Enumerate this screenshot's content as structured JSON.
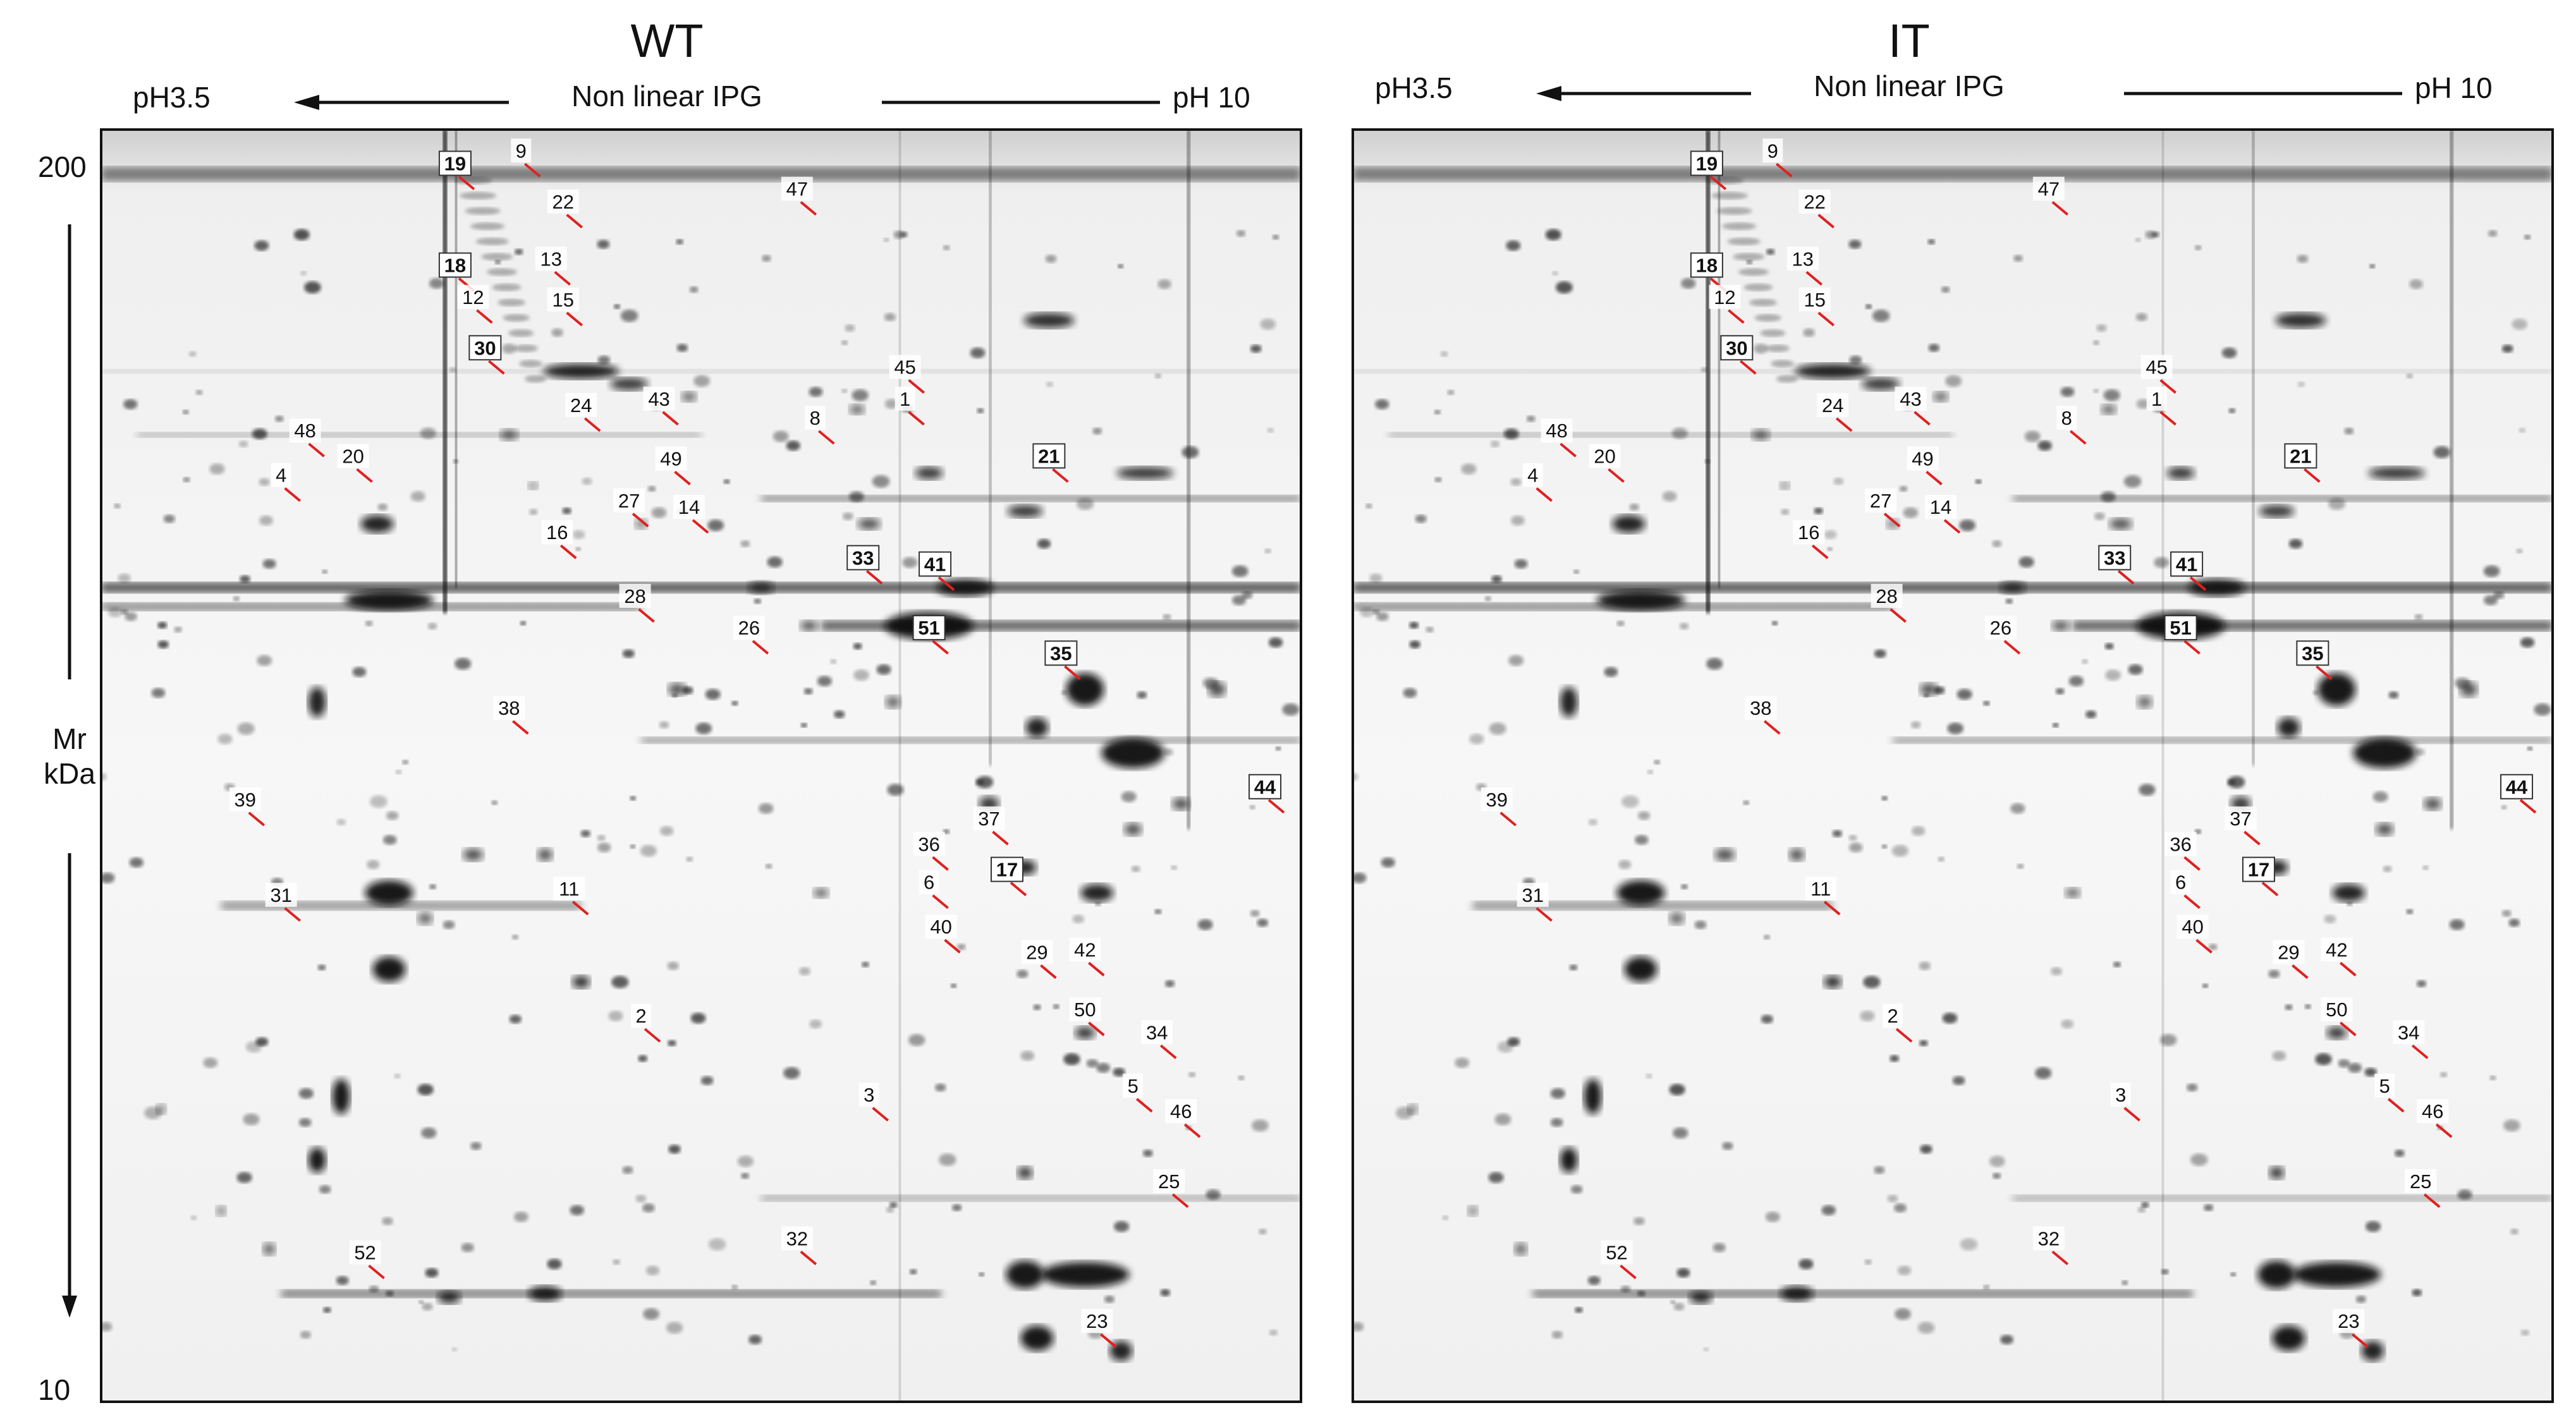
{
  "figure": {
    "left_panel": {
      "title": "WT",
      "ph_left": "pH3.5",
      "ph_right": "pH 10",
      "ipg": "Non linear IPG",
      "mr_top": "200",
      "mr_bottom": "10",
      "mr_label_1": "Mr",
      "mr_label_2": "kDa",
      "spots": [
        {
          "label": "19",
          "boxed": true
        },
        {
          "label": "9",
          "boxed": false
        },
        {
          "label": "22",
          "boxed": false
        },
        {
          "label": "47",
          "boxed": false
        },
        {
          "label": "18",
          "boxed": true
        },
        {
          "label": "13",
          "boxed": false
        },
        {
          "label": "12",
          "boxed": false
        },
        {
          "label": "15",
          "boxed": false
        },
        {
          "label": "30",
          "boxed": true
        },
        {
          "label": "45",
          "boxed": false
        },
        {
          "label": "1",
          "boxed": false
        },
        {
          "label": "24",
          "boxed": false
        },
        {
          "label": "43",
          "boxed": false
        },
        {
          "label": "8",
          "boxed": false
        },
        {
          "label": "48",
          "boxed": false
        },
        {
          "label": "20",
          "boxed": false
        },
        {
          "label": "4",
          "boxed": false
        },
        {
          "label": "21",
          "boxed": true
        },
        {
          "label": "49",
          "boxed": false
        },
        {
          "label": "27",
          "boxed": false
        },
        {
          "label": "14",
          "boxed": false
        },
        {
          "label": "16",
          "boxed": false
        },
        {
          "label": "33",
          "boxed": true
        },
        {
          "label": "41",
          "boxed": true
        },
        {
          "label": "28",
          "boxed": false
        },
        {
          "label": "51",
          "boxed": true
        },
        {
          "label": "26",
          "boxed": false
        },
        {
          "label": "35",
          "boxed": true
        },
        {
          "label": "38",
          "boxed": false
        },
        {
          "label": "44",
          "boxed": true
        },
        {
          "label": "39",
          "boxed": false
        },
        {
          "label": "37",
          "boxed": false
        },
        {
          "label": "36",
          "boxed": false
        },
        {
          "label": "6",
          "boxed": false
        },
        {
          "label": "17",
          "boxed": true
        },
        {
          "label": "31",
          "boxed": false
        },
        {
          "label": "11",
          "boxed": false
        },
        {
          "label": "40",
          "boxed": false
        },
        {
          "label": "29",
          "boxed": false
        },
        {
          "label": "42",
          "boxed": false
        },
        {
          "label": "2",
          "boxed": false
        },
        {
          "label": "50",
          "boxed": false
        },
        {
          "label": "34",
          "boxed": false
        },
        {
          "label": "3",
          "boxed": false
        },
        {
          "label": "5",
          "boxed": false
        },
        {
          "label": "46",
          "boxed": false
        },
        {
          "label": "25",
          "boxed": false
        },
        {
          "label": "32",
          "boxed": false
        },
        {
          "label": "52",
          "boxed": false
        },
        {
          "label": "23",
          "boxed": false
        }
      ]
    },
    "right_panel": {
      "title": "IT",
      "ph_left": "pH3.5",
      "ph_right": "pH 10",
      "ipg": "Non linear IPG",
      "spots": [
        {
          "label": "19",
          "boxed": true
        },
        {
          "label": "9",
          "boxed": false
        },
        {
          "label": "22",
          "boxed": false
        },
        {
          "label": "47",
          "boxed": false
        },
        {
          "label": "18",
          "boxed": true
        },
        {
          "label": "13",
          "boxed": false
        },
        {
          "label": "12",
          "boxed": false
        },
        {
          "label": "15",
          "boxed": false
        },
        {
          "label": "30",
          "boxed": true
        },
        {
          "label": "45",
          "boxed": false
        },
        {
          "label": "1",
          "boxed": false
        },
        {
          "label": "24",
          "boxed": false
        },
        {
          "label": "43",
          "boxed": false
        },
        {
          "label": "8",
          "boxed": false
        },
        {
          "label": "48",
          "boxed": false
        },
        {
          "label": "20",
          "boxed": false
        },
        {
          "label": "4",
          "boxed": false
        },
        {
          "label": "21",
          "boxed": true
        },
        {
          "label": "49",
          "boxed": false
        },
        {
          "label": "27",
          "boxed": false
        },
        {
          "label": "14",
          "boxed": false
        },
        {
          "label": "16",
          "boxed": false
        },
        {
          "label": "33",
          "boxed": true
        },
        {
          "label": "41",
          "boxed": true
        },
        {
          "label": "28",
          "boxed": false
        },
        {
          "label": "51",
          "boxed": true
        },
        {
          "label": "26",
          "boxed": false
        },
        {
          "label": "35",
          "boxed": true
        },
        {
          "label": "38",
          "boxed": false
        },
        {
          "label": "44",
          "boxed": true
        },
        {
          "label": "39",
          "boxed": false
        },
        {
          "label": "37",
          "boxed": false
        },
        {
          "label": "36",
          "boxed": false
        },
        {
          "label": "6",
          "boxed": false
        },
        {
          "label": "17",
          "boxed": true
        },
        {
          "label": "31",
          "boxed": false
        },
        {
          "label": "11",
          "boxed": false
        },
        {
          "label": "40",
          "boxed": false
        },
        {
          "label": "29",
          "boxed": false
        },
        {
          "label": "42",
          "boxed": false
        },
        {
          "label": "2",
          "boxed": false
        },
        {
          "label": "50",
          "boxed": false
        },
        {
          "label": "34",
          "boxed": false
        },
        {
          "label": "3",
          "boxed": false
        },
        {
          "label": "5",
          "boxed": false
        },
        {
          "label": "46",
          "boxed": false
        },
        {
          "label": "25",
          "boxed": false
        },
        {
          "label": "32",
          "boxed": false
        },
        {
          "label": "52",
          "boxed": false
        },
        {
          "label": "23",
          "boxed": false
        }
      ]
    },
    "colors": {
      "marker": "#e02020",
      "ink": "#111111",
      "gel_bg": "#f6f6f6"
    }
  }
}
